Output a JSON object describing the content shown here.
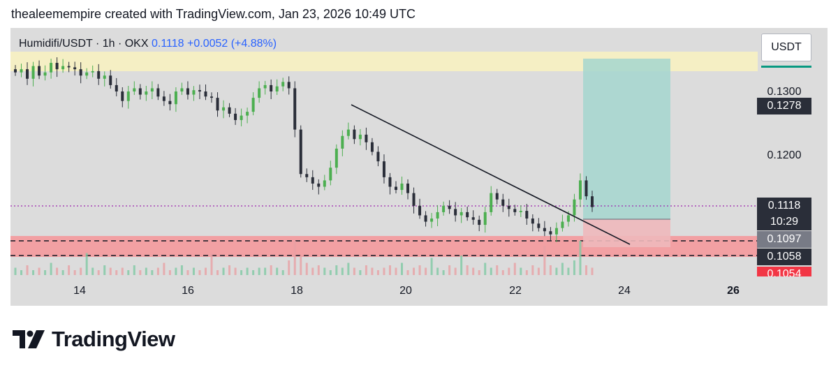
{
  "header": {
    "attribution": "thealeemempire created with TradingView.com, Jan 23, 2026 10:49 UTC"
  },
  "legend": {
    "symbol": "Humidifi/USDT · 1h · OKX",
    "last": "0.1118",
    "change": "+0.0052 (+4.88%)"
  },
  "currency_button": {
    "label": "USDT"
  },
  "price_labels": {
    "p1300": "0.1300",
    "p1278": "0.1278",
    "p1200": "0.1200",
    "p1118": "0.1118",
    "countdown": "10:29",
    "p1097": "0.1097",
    "p1058": "0.1058",
    "p1054": "0.1054"
  },
  "brand": {
    "name": "TradingView"
  },
  "colors": {
    "up": "#089981",
    "down": "#f23645",
    "candle_up": "#4caf50",
    "candle_down": "#2a2e39",
    "yellow_zone": "#f5efc4",
    "red_zone": "#f2a0a3",
    "target_zone": "#a5d6cf",
    "stop_zone": "#eeb8bb",
    "last_price_line": "#9c27b0"
  },
  "chart_data": {
    "type": "candlestick",
    "x_ticks": [
      "14",
      "16",
      "18",
      "20",
      "22",
      "24",
      "26"
    ],
    "y_ticks": [
      "0.1200",
      "0.1300"
    ],
    "price_scale": "right",
    "last_price": 0.1118,
    "resistance_zone": [
      0.134,
      0.137
    ],
    "support_zone": [
      0.1054,
      0.109
    ],
    "support_dashed_lines": [
      0.1084,
      0.1058
    ],
    "trendline": {
      "from": [
        "Jan 19",
        0.1278
      ],
      "to": [
        "Jan 23 20:00",
        0.1092
      ]
    },
    "long_position": {
      "entry": 0.1097,
      "target": 0.134,
      "stop": 0.1054
    },
    "close_series": [
      0.133,
      0.1335,
      0.132,
      0.134,
      0.1325,
      0.133,
      0.1345,
      0.1335,
      0.134,
      0.1338,
      0.1335,
      0.1325,
      0.133,
      0.1332,
      0.132,
      0.1325,
      0.131,
      0.13,
      0.1285,
      0.13,
      0.1305,
      0.1295,
      0.13,
      0.1305,
      0.1292,
      0.1285,
      0.128,
      0.13,
      0.1305,
      0.1295,
      0.1302,
      0.13,
      0.1292,
      0.129,
      0.127,
      0.1275,
      0.1265,
      0.1255,
      0.1262,
      0.1268,
      0.129,
      0.1305,
      0.131,
      0.13,
      0.1308,
      0.1315,
      0.1305,
      0.124,
      0.117,
      0.1165,
      0.1155,
      0.115,
      0.116,
      0.118,
      0.121,
      0.123,
      0.124,
      0.1225,
      0.1232,
      0.122,
      0.1205,
      0.119,
      0.1165,
      0.115,
      0.1145,
      0.1155,
      0.114,
      0.112,
      0.1105,
      0.1095,
      0.11,
      0.111,
      0.112,
      0.1115,
      0.1105,
      0.111,
      0.1102,
      0.1098,
      0.109,
      0.111,
      0.114,
      0.113,
      0.112,
      0.1115,
      0.111,
      0.1112,
      0.11,
      0.1092,
      0.1085,
      0.108,
      0.1075,
      0.1085,
      0.1095,
      0.1105,
      0.113,
      0.116,
      0.1135,
      0.1118
    ],
    "volume_series": [
      3,
      2,
      4,
      2,
      3,
      2,
      5,
      3,
      2,
      4,
      2,
      3,
      9,
      3,
      2,
      4,
      3,
      2,
      3,
      2,
      4,
      2,
      3,
      2,
      3,
      5,
      2,
      3,
      4,
      2,
      3,
      2,
      3,
      9,
      2,
      3,
      4,
      3,
      2,
      3,
      2,
      3,
      3,
      4,
      3,
      2,
      6,
      14,
      8,
      5,
      3,
      4,
      3,
      2,
      4,
      3,
      5,
      3,
      2,
      4,
      3,
      2,
      3,
      4,
      3,
      5,
      2,
      3,
      4,
      3,
      7,
      3,
      2,
      4,
      3,
      8,
      4,
      3,
      2,
      5,
      3,
      4,
      2,
      3,
      5,
      3,
      2,
      4,
      3,
      12,
      4,
      3,
      5,
      3,
      6,
      14,
      4,
      3
    ]
  }
}
